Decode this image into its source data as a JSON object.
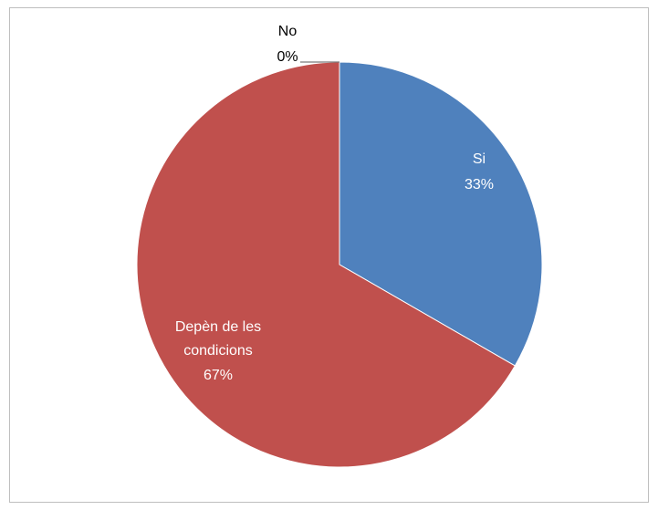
{
  "chart_data": {
    "type": "pie",
    "slices": [
      {
        "name": "Si",
        "percent_label": "33%",
        "value": 33.33,
        "color": "#4f81bd",
        "label_color": "#ffffff"
      },
      {
        "name": "Depèn de les condicions",
        "label_lines": [
          "Depèn de les",
          "condicions"
        ],
        "percent_label": "67%",
        "value": 66.67,
        "color": "#c0504d",
        "label_color": "#ffffff"
      },
      {
        "name": "No",
        "percent_label": "0%",
        "value": 0,
        "color": "#9bbb59",
        "label_color": "#000000"
      }
    ],
    "start": "12 o'clock, clockwise",
    "legend": "none"
  }
}
